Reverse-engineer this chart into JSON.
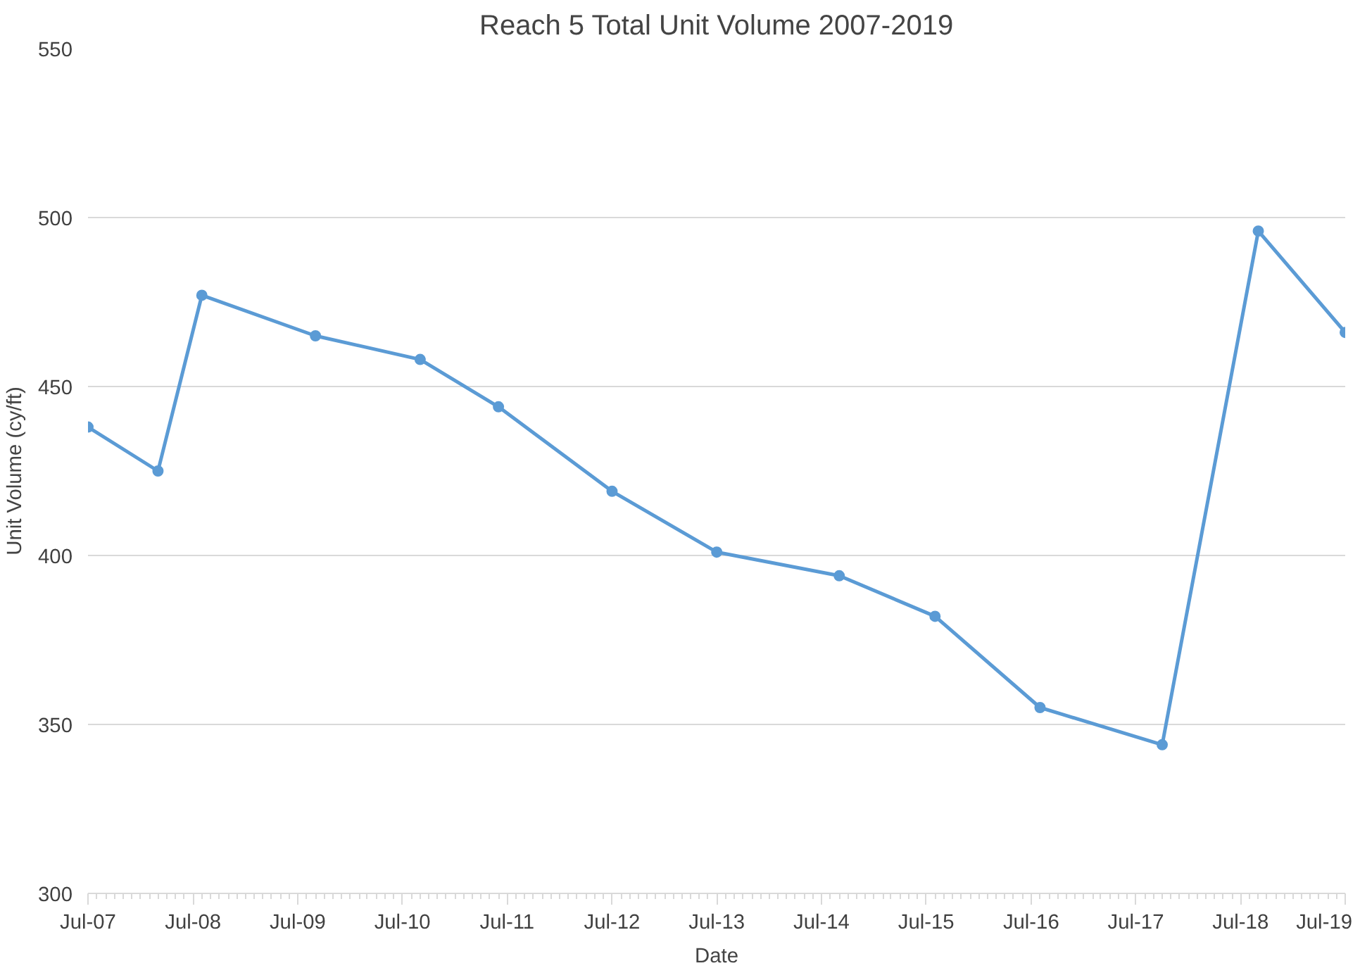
{
  "chart_data": {
    "type": "line",
    "title": "Reach 5 Total Unit Volume 2007-2019",
    "xlabel": "Date",
    "ylabel": "Unit Volume (cy/ft)",
    "x": [
      "2007-07",
      "2008-03",
      "2008-08",
      "2009-09",
      "2010-09",
      "2011-06",
      "2012-07",
      "2013-07",
      "2014-09",
      "2015-08",
      "2016-08",
      "2017-10",
      "2018-09",
      "2019-07"
    ],
    "series": [
      {
        "color": "#5b9bd5",
        "values": [
          438,
          425,
          477,
          465,
          458,
          444,
          419,
          401,
          394,
          382,
          355,
          344,
          496,
          466
        ]
      }
    ],
    "xlim": [
      "2007-07",
      "2019-07"
    ],
    "xticks": [
      {
        "value": "2007-07",
        "label": "Jul-07"
      },
      {
        "value": "2008-07",
        "label": "Jul-08"
      },
      {
        "value": "2009-07",
        "label": "Jul-09"
      },
      {
        "value": "2010-07",
        "label": "Jul-10"
      },
      {
        "value": "2011-07",
        "label": "Jul-11"
      },
      {
        "value": "2012-07",
        "label": "Jul-12"
      },
      {
        "value": "2013-07",
        "label": "Jul-13"
      },
      {
        "value": "2014-07",
        "label": "Jul-14"
      },
      {
        "value": "2015-07",
        "label": "Jul-15"
      },
      {
        "value": "2016-07",
        "label": "Jul-16"
      },
      {
        "value": "2017-07",
        "label": "Jul-17"
      },
      {
        "value": "2018-07",
        "label": "Jul-18"
      },
      {
        "value": "2019-07",
        "label": "Jul-19"
      }
    ],
    "ylim": [
      300,
      550
    ],
    "yticks": [
      300,
      350,
      400,
      450,
      500,
      550
    ],
    "grid": "y",
    "marker": "circle",
    "line_style": "solid"
  }
}
